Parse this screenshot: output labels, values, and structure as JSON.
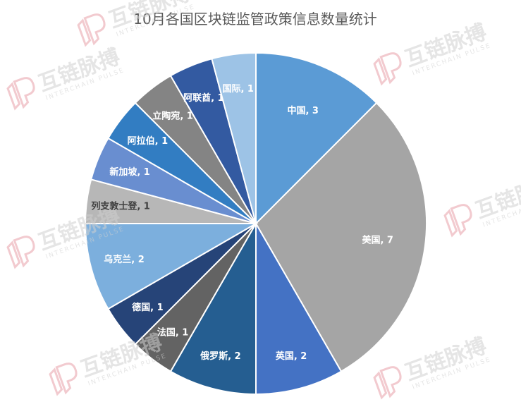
{
  "chart_data": {
    "type": "pie",
    "title": "10月各国区块链监管政策信息数量统计",
    "start_angle_deg": 0,
    "direction": "clockwise",
    "slices": [
      {
        "label": "中国",
        "value": 3,
        "color": "#5b9bd5",
        "text_color": "#ffffff"
      },
      {
        "label": "美国",
        "value": 7,
        "color": "#a5a5a5",
        "text_color": "#ffffff"
      },
      {
        "label": "英国",
        "value": 2,
        "color": "#4472c4",
        "text_color": "#ffffff"
      },
      {
        "label": "俄罗斯",
        "value": 2,
        "color": "#255e91",
        "text_color": "#ffffff"
      },
      {
        "label": "法国",
        "value": 1,
        "color": "#636363",
        "text_color": "#ffffff"
      },
      {
        "label": "德国",
        "value": 1,
        "color": "#264478",
        "text_color": "#ffffff"
      },
      {
        "label": "乌克兰",
        "value": 2,
        "color": "#7cafdd",
        "text_color": "#ffffff"
      },
      {
        "label": "列支敦士登",
        "value": 1,
        "color": "#b7b7b7",
        "text_color": "#404040"
      },
      {
        "label": "新加坡",
        "value": 1,
        "color": "#698ed0",
        "text_color": "#ffffff"
      },
      {
        "label": "阿拉伯",
        "value": 1,
        "color": "#327dc2",
        "text_color": "#ffffff"
      },
      {
        "label": "立陶宛",
        "value": 1,
        "color": "#848484",
        "text_color": "#ffffff"
      },
      {
        "label": "阿联酋",
        "value": 1,
        "color": "#335aa1",
        "text_color": "#ffffff"
      },
      {
        "label": "国际",
        "value": 1,
        "color": "#9dc3e6",
        "text_color": "#ffffff"
      }
    ]
  },
  "watermark": {
    "brand_cn": "互链脉搏",
    "brand_en": "INTERCHAIN PULSE",
    "logo_color": "#e8a0a8",
    "logo_color_2": "#a8b4dc",
    "text_color": "#d0d0d0"
  }
}
